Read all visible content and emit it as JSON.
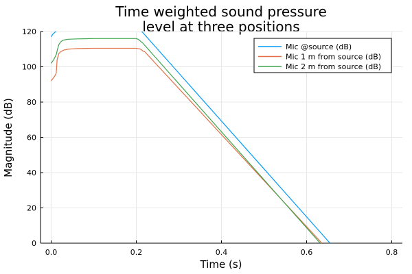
{
  "chart_data": {
    "type": "line",
    "title": [
      "Time weighted sound pressure",
      "level at three positions"
    ],
    "xlabel": "Time (s)",
    "ylabel": "Magnitude (dB)",
    "xlim": [
      -0.025,
      0.825
    ],
    "ylim": [
      0,
      120
    ],
    "xticks": [
      0.0,
      0.2,
      0.4,
      0.6,
      0.8
    ],
    "xtick_labels": [
      "0.0",
      "0.2",
      "0.4",
      "0.6",
      "0.8"
    ],
    "yticks": [
      0,
      20,
      40,
      60,
      80,
      100,
      120
    ],
    "ytick_labels": [
      "0",
      "20",
      "40",
      "60",
      "80",
      "100",
      "120"
    ],
    "grid": true,
    "legend_position": "top-right",
    "series": [
      {
        "name": "Mic @source (dB)",
        "color": "#009AFA",
        "x": [
          0.0,
          0.004,
          0.007,
          0.01,
          0.013,
          0.016,
          0.02,
          0.205,
          0.213,
          0.655
        ],
        "y": [
          117,
          118.5,
          119.2,
          119.8,
          120.5,
          121.5,
          123,
          123,
          120,
          0
        ]
      },
      {
        "name": "Mic 1 m from source (dB)",
        "color": "#E26F46",
        "x": [
          0.0,
          0.003,
          0.006,
          0.009,
          0.012,
          0.014,
          0.018,
          0.022,
          0.026,
          0.03,
          0.04,
          0.06,
          0.1,
          0.15,
          0.2,
          0.21,
          0.215,
          0.22,
          0.636
        ],
        "y": [
          92,
          93,
          94,
          95,
          96.5,
          104,
          107.5,
          108.5,
          109,
          109.5,
          110,
          110.3,
          110.5,
          110.5,
          110.5,
          110,
          109,
          108.5,
          0
        ]
      },
      {
        "name": "Mic 2 m from source (dB)",
        "color": "#3DA44D",
        "x": [
          0.0,
          0.003,
          0.006,
          0.009,
          0.012,
          0.015,
          0.018,
          0.022,
          0.026,
          0.03,
          0.04,
          0.06,
          0.1,
          0.15,
          0.2,
          0.205,
          0.21,
          0.215,
          0.632
        ],
        "y": [
          102,
          103,
          104,
          105.5,
          107,
          110,
          112.5,
          114,
          114.8,
          115.2,
          115.6,
          115.8,
          116,
          116,
          116,
          115.5,
          114.5,
          113.5,
          0
        ]
      }
    ]
  }
}
